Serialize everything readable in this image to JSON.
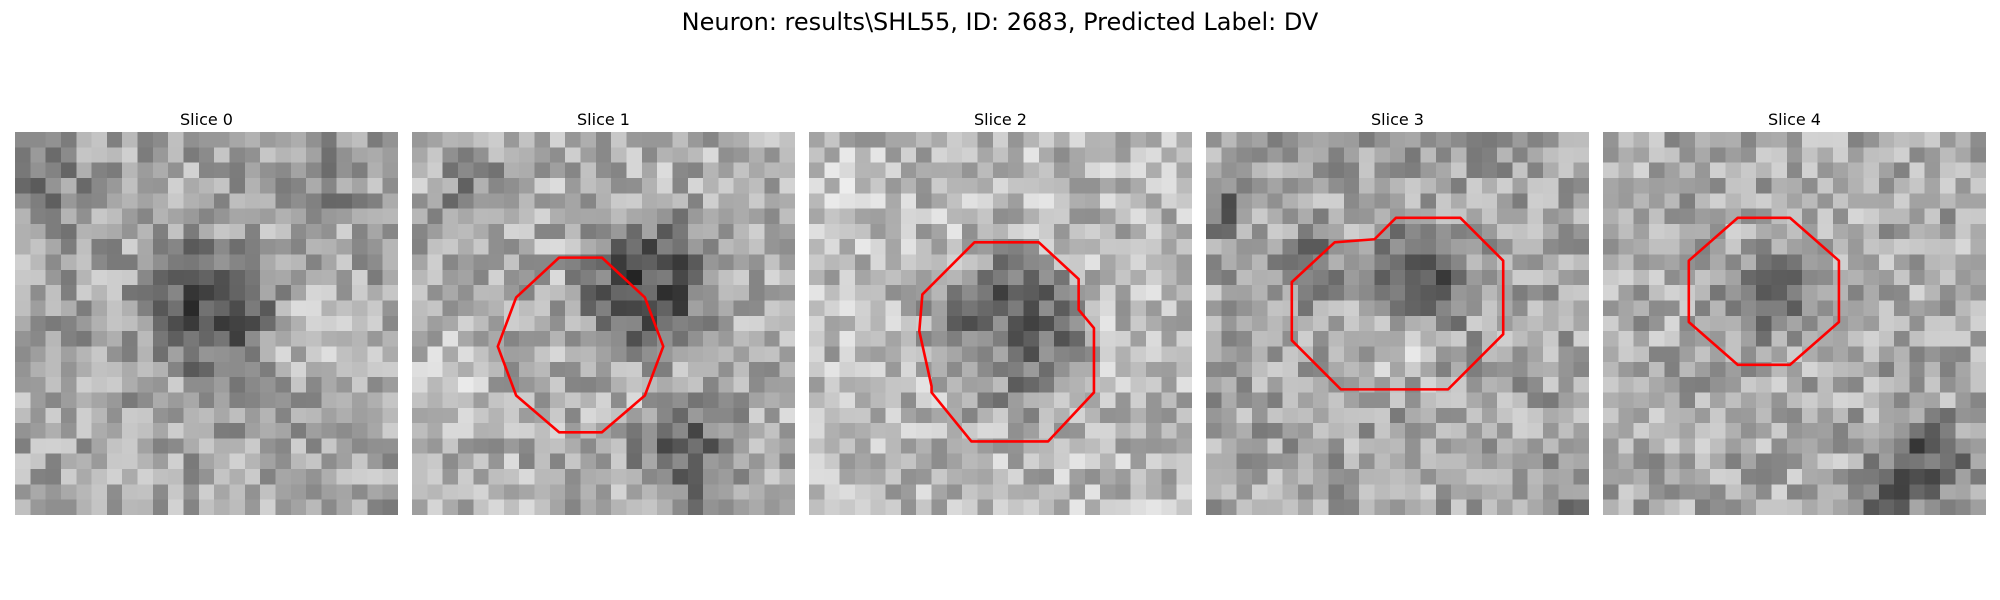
{
  "figure": {
    "title": "Neuron: results\\SHL55, ID: 2683, Predicted Label: DV",
    "grid_size": 25,
    "contour_color": "#ff0000",
    "panels": [
      {
        "title": "Slice 0",
        "seed": 11,
        "base": 165,
        "blobs": [
          {
            "cx": 12.5,
            "cy": 11.5,
            "r": 5.5,
            "delta": -90
          },
          {
            "cx": 2.0,
            "cy": 4.0,
            "r": 4.0,
            "delta": -35
          },
          {
            "cx": 20.0,
            "cy": 3.0,
            "r": 3.5,
            "delta": -30
          },
          {
            "cx": 20.0,
            "cy": 14.0,
            "r": 4.0,
            "delta": 30
          }
        ],
        "contour": []
      },
      {
        "title": "Slice 1",
        "seed": 23,
        "base": 175,
        "blobs": [
          {
            "cx": 15.5,
            "cy": 10.0,
            "r": 6.0,
            "delta": -95
          },
          {
            "cx": 4.0,
            "cy": 4.0,
            "r": 3.5,
            "delta": -40
          },
          {
            "cx": 18.0,
            "cy": 21.0,
            "r": 5.0,
            "delta": -65
          },
          {
            "cx": 2.0,
            "cy": 16.0,
            "r": 4.0,
            "delta": 25
          }
        ],
        "contour": [
          [
            9.6,
            8.2
          ],
          [
            6.8,
            10.8
          ],
          [
            5.6,
            14.0
          ],
          [
            6.8,
            17.2
          ],
          [
            9.6,
            19.6
          ],
          [
            12.4,
            19.6
          ],
          [
            15.2,
            17.2
          ],
          [
            16.4,
            14.0
          ],
          [
            15.2,
            10.8
          ],
          [
            12.4,
            8.2
          ]
        ]
      },
      {
        "title": "Slice 2",
        "seed": 37,
        "base": 185,
        "blobs": [
          {
            "cx": 13.0,
            "cy": 13.0,
            "r": 6.5,
            "delta": -100
          },
          {
            "cx": 12.0,
            "cy": 14.5,
            "r": 3.0,
            "delta": 55
          },
          {
            "cx": 3.0,
            "cy": 5.0,
            "r": 4.0,
            "delta": 15
          }
        ],
        "contour": [
          [
            10.8,
            7.2
          ],
          [
            7.4,
            10.6
          ],
          [
            7.2,
            13.0
          ],
          [
            8.0,
            16.6
          ],
          [
            8.0,
            17.0
          ],
          [
            10.6,
            20.2
          ],
          [
            15.6,
            20.2
          ],
          [
            18.6,
            17.0
          ],
          [
            18.6,
            12.8
          ],
          [
            17.6,
            11.6
          ],
          [
            17.6,
            9.6
          ],
          [
            15.0,
            7.2
          ]
        ]
      },
      {
        "title": "Slice 3",
        "seed": 49,
        "base": 165,
        "blobs": [
          {
            "cx": 14.0,
            "cy": 9.5,
            "r": 4.5,
            "delta": -75
          },
          {
            "cx": 7.0,
            "cy": 9.0,
            "r": 3.5,
            "delta": -40
          },
          {
            "cx": 1.0,
            "cy": 5.0,
            "r": 2.5,
            "delta": -55
          },
          {
            "cx": 23.0,
            "cy": 23.0,
            "r": 3.0,
            "delta": -35
          },
          {
            "cx": 13.0,
            "cy": 14.0,
            "r": 3.5,
            "delta": 25
          }
        ],
        "contour": [
          [
            8.4,
            7.2
          ],
          [
            5.6,
            9.8
          ],
          [
            5.6,
            13.6
          ],
          [
            8.8,
            16.8
          ],
          [
            15.8,
            16.8
          ],
          [
            19.4,
            13.2
          ],
          [
            19.4,
            8.4
          ],
          [
            16.6,
            5.6
          ],
          [
            12.4,
            5.6
          ],
          [
            11.0,
            7.0
          ]
        ]
      },
      {
        "title": "Slice 4",
        "seed": 61,
        "base": 170,
        "blobs": [
          {
            "cx": 10.5,
            "cy": 10.5,
            "r": 4.5,
            "delta": -50
          },
          {
            "cx": 21.0,
            "cy": 21.5,
            "r": 4.0,
            "delta": -80
          },
          {
            "cx": 18.0,
            "cy": 24.0,
            "r": 3.0,
            "delta": -55
          }
        ],
        "contour": [
          [
            8.8,
            5.6
          ],
          [
            5.6,
            8.4
          ],
          [
            5.6,
            12.4
          ],
          [
            8.8,
            15.2
          ],
          [
            12.2,
            15.2
          ],
          [
            15.4,
            12.4
          ],
          [
            15.4,
            8.4
          ],
          [
            12.2,
            5.6
          ]
        ]
      }
    ]
  }
}
